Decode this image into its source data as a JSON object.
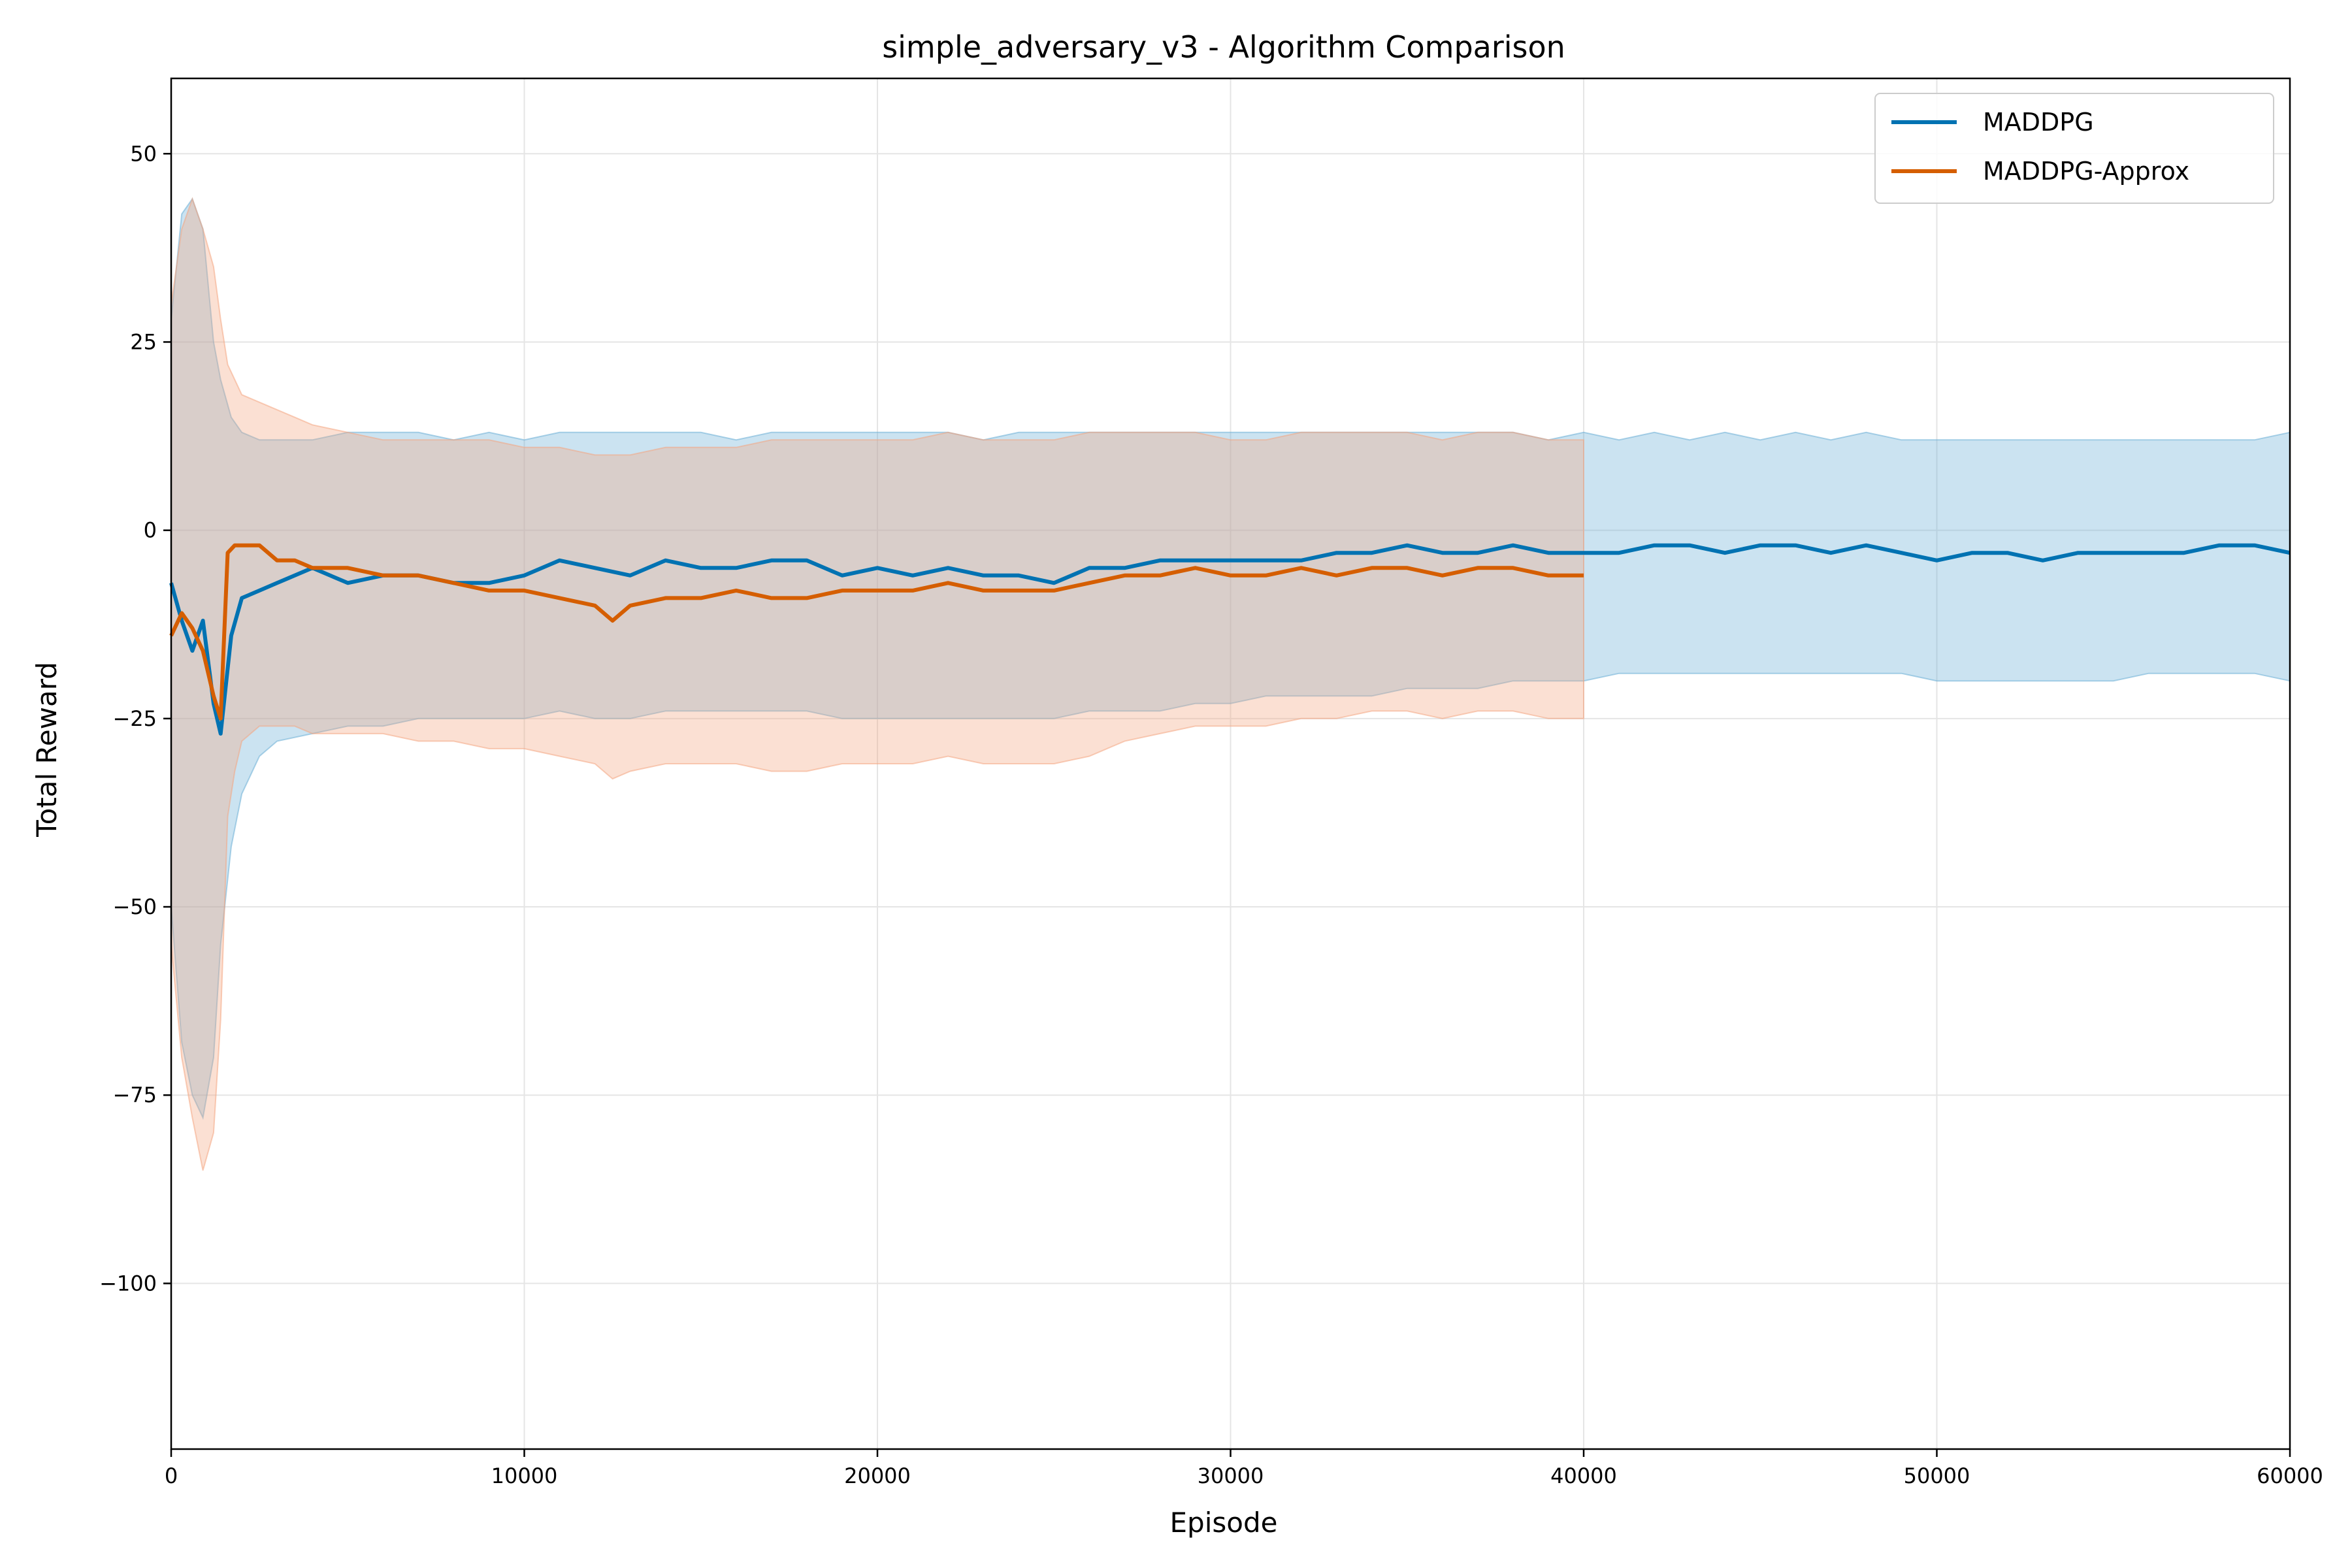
{
  "chart_data": {
    "type": "line",
    "title": "simple_adversary_v3 - Algorithm Comparison",
    "xlabel": "Episode",
    "ylabel": "Total Reward",
    "xlim": [
      0,
      60000
    ],
    "ylim": [
      -122,
      60
    ],
    "grid": true,
    "legend_position": "top-right",
    "x_ticks": [
      {
        "value": 0,
        "label": "0"
      },
      {
        "value": 10000,
        "label": "10000"
      },
      {
        "value": 20000,
        "label": "20000"
      },
      {
        "value": 30000,
        "label": "30000"
      },
      {
        "value": 40000,
        "label": "40000"
      },
      {
        "value": 50000,
        "label": "50000"
      },
      {
        "value": 60000,
        "label": "60000"
      }
    ],
    "y_ticks": [
      {
        "value": 50,
        "label": "50"
      },
      {
        "value": 25,
        "label": "25"
      },
      {
        "value": 0,
        "label": "0"
      },
      {
        "value": -25,
        "label": "−25"
      },
      {
        "value": -50,
        "label": "−50"
      },
      {
        "value": -75,
        "label": "−75"
      },
      {
        "value": -100,
        "label": "−100"
      }
    ],
    "series": [
      {
        "name": "MADDPG",
        "color": "#0072b2",
        "band_color": "#6baed6",
        "x": [
          0,
          300,
          600,
          900,
          1200,
          1400,
          1700,
          2000,
          2500,
          3000,
          4000,
          5000,
          6000,
          7000,
          8000,
          9000,
          10000,
          11000,
          12000,
          13000,
          14000,
          15000,
          16000,
          17000,
          18000,
          19000,
          20000,
          21000,
          22000,
          23000,
          24000,
          25000,
          26000,
          27000,
          28000,
          29000,
          30000,
          31000,
          32000,
          33000,
          34000,
          35000,
          36000,
          37000,
          38000,
          39000,
          40000,
          41000,
          42000,
          43000,
          44000,
          45000,
          46000,
          47000,
          48000,
          49000,
          50000,
          51000,
          52000,
          53000,
          54000,
          55000,
          56000,
          57000,
          58000,
          59000,
          60000
        ],
        "values": [
          -7,
          -12,
          -16,
          -12,
          -23,
          -27,
          -14,
          -9,
          -8,
          -7,
          -5,
          -7,
          -6,
          -6,
          -7,
          -7,
          -6,
          -4,
          -5,
          -6,
          -4,
          -5,
          -5,
          -4,
          -4,
          -6,
          -5,
          -6,
          -5,
          -6,
          -6,
          -7,
          -5,
          -5,
          -4,
          -4,
          -4,
          -4,
          -4,
          -3,
          -3,
          -2,
          -3,
          -3,
          -2,
          -3,
          -3,
          -3,
          -2,
          -2,
          -3,
          -2,
          -2,
          -3,
          -2,
          -3,
          -4,
          -3,
          -3,
          -4,
          -3,
          -3,
          -3,
          -3,
          -2,
          -2,
          -3
        ],
        "upper": [
          28,
          42,
          44,
          40,
          25,
          20,
          15,
          13,
          12,
          12,
          12,
          13,
          13,
          13,
          12,
          13,
          12,
          13,
          13,
          13,
          13,
          13,
          12,
          13,
          13,
          13,
          13,
          13,
          13,
          12,
          13,
          13,
          13,
          13,
          13,
          13,
          13,
          13,
          13,
          13,
          13,
          13,
          13,
          13,
          13,
          12,
          13,
          12,
          13,
          12,
          13,
          12,
          13,
          12,
          13,
          12,
          12,
          12,
          12,
          12,
          12,
          12,
          12,
          12,
          12,
          12,
          13
        ],
        "lower": [
          -50,
          -68,
          -75,
          -78,
          -70,
          -55,
          -42,
          -35,
          -30,
          -28,
          -27,
          -26,
          -26,
          -25,
          -25,
          -25,
          -25,
          -24,
          -25,
          -25,
          -24,
          -24,
          -24,
          -24,
          -24,
          -25,
          -25,
          -25,
          -25,
          -25,
          -25,
          -25,
          -24,
          -24,
          -24,
          -23,
          -23,
          -22,
          -22,
          -22,
          -22,
          -21,
          -21,
          -21,
          -20,
          -20,
          -20,
          -19,
          -19,
          -19,
          -19,
          -19,
          -19,
          -19,
          -19,
          -19,
          -20,
          -20,
          -20,
          -20,
          -20,
          -20,
          -19,
          -19,
          -19,
          -19,
          -20
        ]
      },
      {
        "name": "MADDPG-Approx",
        "color": "#d55e00",
        "band_color": "#f4a582",
        "x": [
          0,
          300,
          600,
          900,
          1200,
          1400,
          1600,
          1800,
          2000,
          2500,
          3000,
          3500,
          4000,
          5000,
          6000,
          7000,
          8000,
          9000,
          10000,
          11000,
          12000,
          12500,
          13000,
          14000,
          15000,
          16000,
          17000,
          18000,
          19000,
          20000,
          21000,
          22000,
          23000,
          24000,
          25000,
          26000,
          27000,
          28000,
          29000,
          30000,
          31000,
          32000,
          33000,
          34000,
          35000,
          36000,
          37000,
          38000,
          39000,
          40000
        ],
        "values": [
          -14,
          -11,
          -13,
          -16,
          -22,
          -25,
          -3,
          -2,
          -2,
          -2,
          -4,
          -4,
          -5,
          -5,
          -6,
          -6,
          -7,
          -8,
          -8,
          -9,
          -10,
          -12,
          -10,
          -9,
          -9,
          -8,
          -9,
          -9,
          -8,
          -8,
          -8,
          -7,
          -8,
          -8,
          -8,
          -7,
          -6,
          -6,
          -5,
          -6,
          -6,
          -5,
          -6,
          -5,
          -5,
          -6,
          -5,
          -5,
          -6,
          -6
        ],
        "upper": [
          30,
          40,
          44,
          40,
          35,
          28,
          22,
          20,
          18,
          17,
          16,
          15,
          14,
          13,
          12,
          12,
          12,
          12,
          11,
          11,
          10,
          10,
          10,
          11,
          11,
          11,
          12,
          12,
          12,
          12,
          12,
          13,
          12,
          12,
          12,
          13,
          13,
          13,
          13,
          12,
          12,
          13,
          13,
          13,
          13,
          12,
          13,
          13,
          12,
          12
        ],
        "lower": [
          -55,
          -70,
          -78,
          -85,
          -80,
          -65,
          -38,
          -32,
          -28,
          -26,
          -26,
          -26,
          -27,
          -27,
          -27,
          -28,
          -28,
          -29,
          -29,
          -30,
          -31,
          -33,
          -32,
          -31,
          -31,
          -31,
          -32,
          -32,
          -31,
          -31,
          -31,
          -30,
          -31,
          -31,
          -31,
          -30,
          -28,
          -27,
          -26,
          -26,
          -26,
          -25,
          -25,
          -24,
          -24,
          -25,
          -24,
          -24,
          -25,
          -25
        ]
      }
    ]
  }
}
